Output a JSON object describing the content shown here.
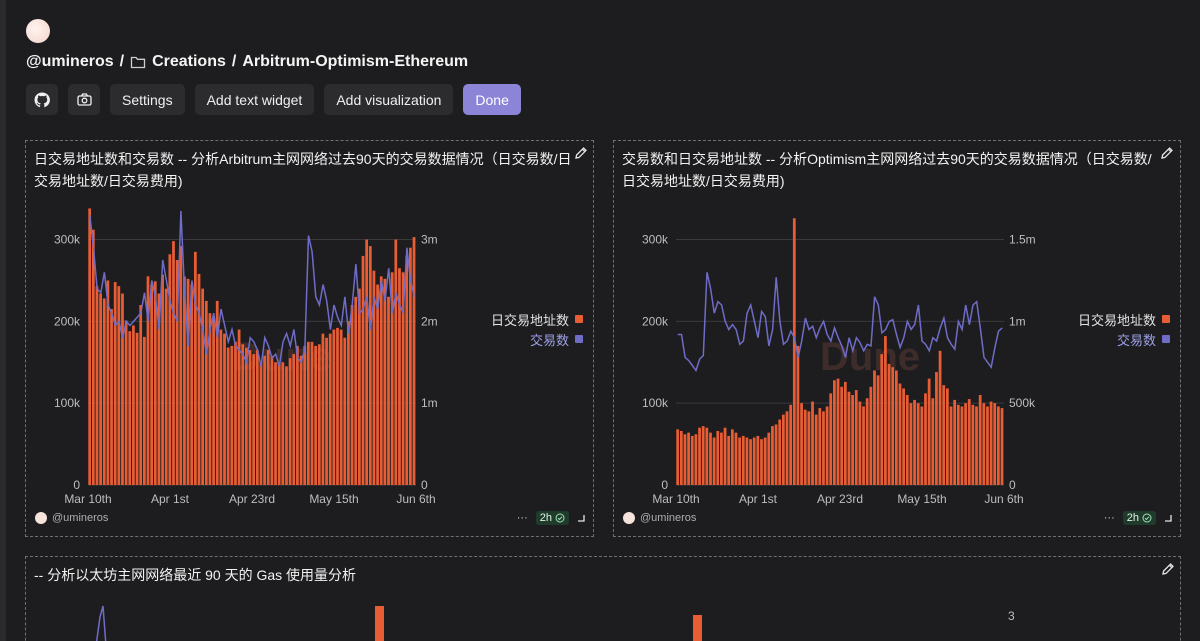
{
  "header": {
    "owner": "@umineros",
    "folder": "Creations",
    "dashboard": "Arbitrum-Optimism-Ethereum"
  },
  "toolbar": {
    "github_icon": "github-icon",
    "camera_icon": "camera-icon",
    "settings_label": "Settings",
    "add_text_label": "Add text widget",
    "add_viz_label": "Add visualization",
    "done_label": "Done",
    "done_color": "#8c84d6"
  },
  "colors": {
    "bar": "#e95d34",
    "line": "#6f6cc8",
    "background": "#1d1d1f",
    "grid": "#3a3a3d"
  },
  "panels": [
    {
      "title_line1": "日交易地址数和交易数  -- 分析Arbitrum主网网络过去90天的交易数据情况（日交易数/日",
      "title_line2": "交易地址数/日交易费用)",
      "legend_bar": "日交易地址数",
      "legend_line": "交易数",
      "footer_user": "@umineros",
      "footer_more": "···",
      "footer_badge": "2h"
    },
    {
      "title_line1": "交易数和日交易地址数  -- 分析Optimism主网网络过去90天的交易数据情况（日交易数/",
      "title_line2": "日交易地址数/日交易费用)",
      "legend_bar": "日交易地址数",
      "legend_line": "交易数",
      "footer_user": "@umineros",
      "footer_more": "···",
      "footer_badge": "2h"
    },
    {
      "title_line1": "-- 分析以太坊主网网络最近 90 天的 Gas 使用量分析"
    }
  ],
  "chart_data": [
    {
      "type": "bar+line",
      "watermark": "Dune",
      "x_ticks": [
        "Mar 10th",
        "Apr 1st",
        "Apr 23rd",
        "May 15th",
        "Jun 6th"
      ],
      "y_left_ticks": [
        "0",
        "100k",
        "200k",
        "300k"
      ],
      "y_right_ticks": [
        "0",
        "1m",
        "2m",
        "3m"
      ],
      "ylim_left": [
        0,
        300000
      ],
      "ylim_right": [
        0,
        3000000
      ],
      "series": [
        {
          "name": "日交易地址数",
          "kind": "bar",
          "axis": "left",
          "values": [
            338000,
            312000,
            243000,
            234000,
            228000,
            250000,
            215000,
            248000,
            243000,
            234000,
            201000,
            188000,
            195000,
            186000,
            220000,
            181000,
            255000,
            245000,
            249000,
            234000,
            257000,
            240000,
            282000,
            298000,
            275000,
            292000,
            255000,
            252000,
            245000,
            285000,
            258000,
            240000,
            225000,
            210000,
            205000,
            225000,
            190000,
            185000,
            168000,
            170000,
            175000,
            190000,
            172000,
            168000,
            165000,
            160000,
            165000,
            150000,
            158000,
            165000,
            158000,
            150000,
            148000,
            150000,
            145000,
            155000,
            160000,
            170000,
            158000,
            170000,
            175000,
            175000,
            170000,
            172000,
            185000,
            180000,
            185000,
            190000,
            192000,
            190000,
            180000,
            200000,
            220000,
            230000,
            240000,
            280000,
            300000,
            292000,
            262000,
            245000,
            255000,
            252000,
            230000,
            260000,
            300000,
            265000,
            260000,
            280000,
            290000,
            303000
          ]
        },
        {
          "name": "交易数",
          "kind": "line",
          "axis": "right",
          "values": [
            3300000,
            2900000,
            2400000,
            2350000,
            2600000,
            2200000,
            2100000,
            1950000,
            2000000,
            1800000,
            2000000,
            1950000,
            2000000,
            2050000,
            2100000,
            2350000,
            2000000,
            2500000,
            2300000,
            1900000,
            2750000,
            2500000,
            2250000,
            2100000,
            2000000,
            3350000,
            2350000,
            1700000,
            2500000,
            2200000,
            2100000,
            1900000,
            1600000,
            1900000,
            2100000,
            1800000,
            2150000,
            1950000,
            1750000,
            1900000,
            1700000,
            1650000,
            1600000,
            1500000,
            1800000,
            1750000,
            1650000,
            1450000,
            1800000,
            1700000,
            1550000,
            1600000,
            1450000,
            1750000,
            1850000,
            1700000,
            1900000,
            1550000,
            1500000,
            1650000,
            3050000,
            2850000,
            2300000,
            2200000,
            2450000,
            2250000,
            1900000,
            2200000,
            2050000,
            1950000,
            2300000,
            1850000,
            2200000,
            2700000,
            2100000,
            2150000,
            2300000,
            1900000,
            2300000,
            2150000,
            2500000,
            2250000,
            2650000,
            2100000,
            2350000,
            2200000,
            2100000,
            2900000,
            2500000,
            2300000
          ]
        }
      ]
    },
    {
      "type": "bar+line",
      "watermark": "Dune",
      "x_ticks": [
        "Mar 10th",
        "Apr 1st",
        "Apr 23rd",
        "May 15th",
        "Jun 6th"
      ],
      "y_left_ticks": [
        "0",
        "100k",
        "200k",
        "300k"
      ],
      "y_right_ticks": [
        "0",
        "500k",
        "1m",
        "1.5m"
      ],
      "ylim_left": [
        0,
        300000
      ],
      "ylim_right": [
        0,
        1500000
      ],
      "series": [
        {
          "name": "日交易地址数",
          "kind": "bar",
          "axis": "left",
          "values": [
            68000,
            66000,
            62000,
            64000,
            60000,
            62000,
            70000,
            72000,
            70000,
            64000,
            58000,
            66000,
            64000,
            70000,
            60000,
            68000,
            64000,
            58000,
            60000,
            58000,
            56000,
            58000,
            60000,
            56000,
            58000,
            64000,
            72000,
            74000,
            80000,
            86000,
            90000,
            98000,
            326000,
            170000,
            100000,
            92000,
            90000,
            102000,
            86000,
            94000,
            90000,
            96000,
            112000,
            128000,
            130000,
            120000,
            126000,
            114000,
            110000,
            116000,
            102000,
            96000,
            106000,
            120000,
            140000,
            134000,
            160000,
            182000,
            148000,
            144000,
            140000,
            124000,
            118000,
            110000,
            100000,
            104000,
            100000,
            96000,
            112000,
            130000,
            106000,
            138000,
            164000,
            122000,
            118000,
            96000,
            104000,
            98000,
            96000,
            100000,
            105000,
            98000,
            96000,
            110000,
            100000,
            96000,
            102000,
            100000,
            96000,
            94000
          ]
        },
        {
          "name": "交易数",
          "kind": "line",
          "axis": "right",
          "values": [
            920000,
            920000,
            780000,
            760000,
            730000,
            700000,
            770000,
            790000,
            1300000,
            1200000,
            1050000,
            1120000,
            1100000,
            1000000,
            950000,
            980000,
            950000,
            860000,
            880000,
            1050000,
            1100000,
            1000000,
            900000,
            1060000,
            1030000,
            850000,
            950000,
            1270000,
            1000000,
            860000,
            880000,
            940000,
            900000,
            780000,
            880000,
            1020000,
            950000,
            970000,
            900000,
            960000,
            1000000,
            920000,
            880000,
            960000,
            900000,
            850000,
            780000,
            900000,
            820000,
            900000,
            870000,
            820000,
            860000,
            850000,
            1150000,
            1100000,
            930000,
            950000,
            1000000,
            1010000,
            920000,
            840000,
            900000,
            1000000,
            950000,
            980000,
            1100000,
            880000,
            860000,
            820000,
            900000,
            880000,
            960000,
            1020000,
            900000,
            860000,
            830000,
            1000000,
            950000,
            1100000,
            980000,
            1100000,
            1120000,
            960000,
            780000,
            750000,
            720000,
            840000,
            940000,
            960000
          ]
        }
      ]
    }
  ]
}
